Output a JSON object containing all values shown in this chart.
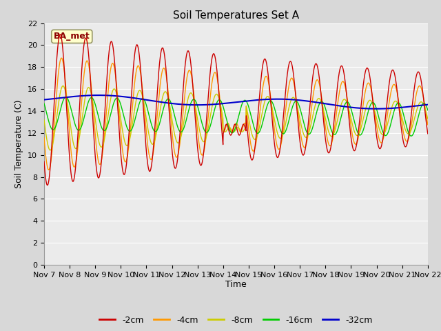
{
  "title": "Soil Temperatures Set A",
  "xlabel": "Time",
  "ylabel": "Soil Temperature (C)",
  "ylim": [
    0,
    22
  ],
  "yticks": [
    0,
    2,
    4,
    6,
    8,
    10,
    12,
    14,
    16,
    18,
    20,
    22
  ],
  "xtick_labels": [
    "Nov 7",
    "Nov 8",
    "Nov 9",
    "Nov 10",
    "Nov 11",
    "Nov 12",
    "Nov 13",
    "Nov 14",
    "Nov 15",
    "Nov 16",
    "Nov 17",
    "Nov 18",
    "Nov 19",
    "Nov 20",
    "Nov 21",
    "Nov 22"
  ],
  "annotation_text": "BA_met",
  "colors": {
    "-2cm": "#cc0000",
    "-4cm": "#ff9900",
    "-8cm": "#cccc00",
    "-16cm": "#00cc00",
    "-32cm": "#0000cc"
  },
  "background_color": "#d8d8d8",
  "plot_bg_color": "#ebebeb",
  "grid_color": "#ffffff",
  "title_fontsize": 11,
  "axis_fontsize": 9,
  "tick_fontsize": 8,
  "legend_fontsize": 9
}
